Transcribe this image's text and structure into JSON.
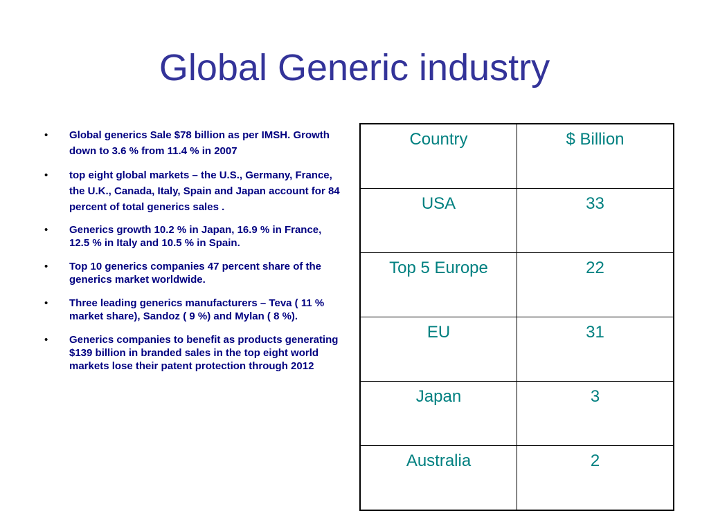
{
  "slide": {
    "title": "Global Generic industry"
  },
  "bullets": [
    "Global generics Sale $78 billion as per IMSH. Growth down to 3.6 % from 11.4 % in 2007",
    "top eight global markets – the U.S., Germany, France, the U.K., Canada, Italy, Spain and Japan  account for 84 percent of total generics sales .",
    "Generics growth  10.2 % in Japan, 16.9 %  in France, 12.5 % in Italy and 10.5 % in Spain.",
    "Top 10 generics companies 47 percent share of the generics market worldwide.",
    " Three leading generics manufacturers – Teva ( 11 % market share), Sandoz ( 9 %) and Mylan ( 8 %).",
    "Generics companies to  benefit as products generating $139 billion in branded sales in the top eight world markets lose their patent protection through 2012"
  ],
  "bullet_symbol": "•",
  "table": {
    "headers": [
      "Country",
      "$ Billion"
    ],
    "rows": [
      [
        "USA",
        "33"
      ],
      [
        "Top 5 Europe",
        "22"
      ],
      [
        "EU",
        "31"
      ],
      [
        "Japan",
        "3"
      ],
      [
        "Australia",
        "2"
      ]
    ]
  },
  "colors": {
    "title": "#333399",
    "bullet_text": "#000080",
    "table_text": "#008080"
  }
}
